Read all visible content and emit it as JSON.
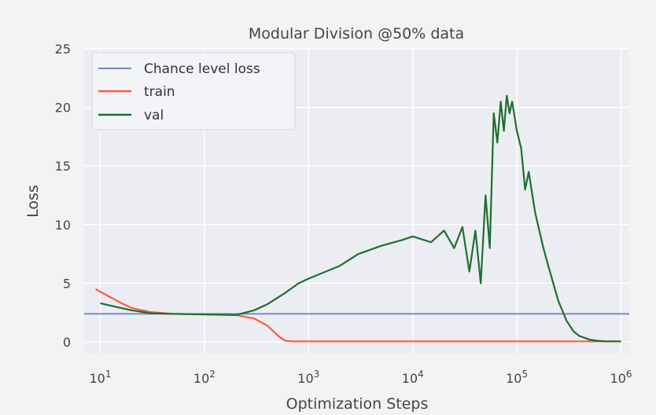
{
  "chart_data": {
    "type": "line",
    "title": "Modular Division @50% data",
    "xlabel": "Optimization Steps",
    "ylabel": "Loss",
    "xscale": "log",
    "xlim": [
      7,
      1200000
    ],
    "ylim": [
      -1,
      25
    ],
    "x_ticks": [
      10,
      100,
      1000,
      10000,
      100000,
      1000000
    ],
    "x_tick_labels": [
      {
        "base": "10",
        "exp": "1"
      },
      {
        "base": "10",
        "exp": "2"
      },
      {
        "base": "10",
        "exp": "3"
      },
      {
        "base": "10",
        "exp": "4"
      },
      {
        "base": "10",
        "exp": "5"
      },
      {
        "base": "10",
        "exp": "6"
      }
    ],
    "y_ticks": [
      0,
      5,
      10,
      15,
      20,
      25
    ],
    "y_tick_labels": [
      "0",
      "5",
      "10",
      "15",
      "20",
      "25"
    ],
    "grid": true,
    "legend_position": "top-left",
    "series": [
      {
        "name": "Chance level loss",
        "color": "#6f87c4",
        "x": [
          7,
          1200000
        ],
        "y": [
          2.4,
          2.4
        ]
      },
      {
        "name": "train",
        "color": "#fc5c3c",
        "x": [
          9,
          12,
          16,
          20,
          30,
          50,
          100,
          200,
          300,
          400,
          500,
          550,
          600,
          700,
          1000,
          3000,
          10000,
          100000,
          1000000
        ],
        "y": [
          4.5,
          3.9,
          3.3,
          2.9,
          2.55,
          2.4,
          2.35,
          2.3,
          2.0,
          1.4,
          0.6,
          0.3,
          0.1,
          0.05,
          0.05,
          0.05,
          0.05,
          0.05,
          0.05
        ]
      },
      {
        "name": "val",
        "color": "#1f6e2f",
        "x": [
          10,
          14,
          20,
          30,
          50,
          100,
          200,
          300,
          400,
          600,
          800,
          1000,
          2000,
          3000,
          5000,
          8000,
          10000,
          15000,
          20000,
          25000,
          30000,
          35000,
          40000,
          45000,
          50000,
          55000,
          60000,
          65000,
          70000,
          75000,
          80000,
          85000,
          90000,
          100000,
          110000,
          120000,
          130000,
          150000,
          180000,
          200000,
          250000,
          300000,
          350000,
          400000,
          500000,
          600000,
          700000,
          1000000
        ],
        "y": [
          3.3,
          3.0,
          2.7,
          2.45,
          2.4,
          2.35,
          2.3,
          2.7,
          3.2,
          4.2,
          5.0,
          5.4,
          6.5,
          7.5,
          8.2,
          8.7,
          9.0,
          8.5,
          9.5,
          8.0,
          9.8,
          6.0,
          9.5,
          5.0,
          12.5,
          8.0,
          19.5,
          17.0,
          20.5,
          18.0,
          21.0,
          19.5,
          20.5,
          18.0,
          16.5,
          13.0,
          14.5,
          11.0,
          8.0,
          6.5,
          3.5,
          1.8,
          0.9,
          0.5,
          0.2,
          0.1,
          0.05,
          0.05
        ]
      }
    ]
  }
}
